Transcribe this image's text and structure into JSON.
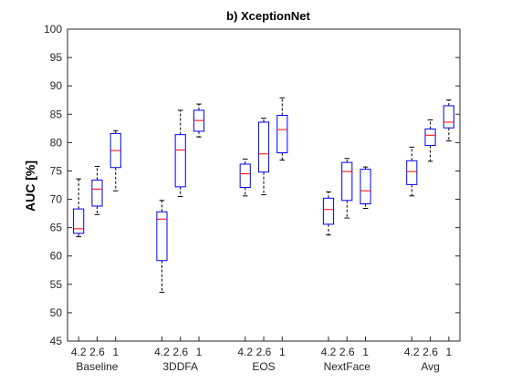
{
  "chart_data": {
    "type": "box",
    "title": "b) XceptionNet",
    "ylabel": "AUC [%]",
    "xlabel": "",
    "ylim": [
      45,
      100
    ],
    "yticks": [
      45,
      50,
      55,
      60,
      65,
      70,
      75,
      80,
      85,
      90,
      95,
      100
    ],
    "grid": false,
    "legend": "none",
    "colors": {
      "box": "#0000ff",
      "median": "#ff0000",
      "whisker": "#000000",
      "axis": "#262626"
    },
    "groups": [
      {
        "name": "Baseline",
        "boxes": [
          {
            "label": "4.2",
            "min": 63.4,
            "q1": 64.0,
            "median": 64.8,
            "q3": 68.3,
            "max": 73.6
          },
          {
            "label": "2.6",
            "min": 67.3,
            "q1": 68.8,
            "median": 71.8,
            "q3": 73.4,
            "max": 75.8
          },
          {
            "label": "1",
            "min": 71.5,
            "q1": 75.6,
            "median": 78.6,
            "q3": 81.6,
            "max": 82.1
          }
        ]
      },
      {
        "name": "3DDFA",
        "boxes": [
          {
            "label": "4.2",
            "min": 53.6,
            "q1": 59.2,
            "median": 66.5,
            "q3": 67.8,
            "max": 69.8
          },
          {
            "label": "2.6",
            "min": 70.5,
            "q1": 72.2,
            "median": 78.7,
            "q3": 81.4,
            "max": 85.7
          },
          {
            "label": "1",
            "min": 81.0,
            "q1": 82.0,
            "median": 83.9,
            "q3": 85.7,
            "max": 86.8
          }
        ]
      },
      {
        "name": "EOS",
        "boxes": [
          {
            "label": "4.2",
            "min": 70.6,
            "q1": 72.1,
            "median": 74.5,
            "q3": 76.2,
            "max": 77.1
          },
          {
            "label": "2.6",
            "min": 70.8,
            "q1": 74.8,
            "median": 78.0,
            "q3": 83.6,
            "max": 84.3
          },
          {
            "label": "1",
            "min": 76.9,
            "q1": 78.2,
            "median": 82.3,
            "q3": 84.8,
            "max": 87.9
          }
        ]
      },
      {
        "name": "NextFace",
        "boxes": [
          {
            "label": "4.2",
            "min": 63.7,
            "q1": 65.6,
            "median": 68.2,
            "q3": 70.2,
            "max": 71.3
          },
          {
            "label": "2.6",
            "min": 66.7,
            "q1": 69.8,
            "median": 74.9,
            "q3": 76.5,
            "max": 77.2
          },
          {
            "label": "1",
            "min": 68.4,
            "q1": 69.2,
            "median": 71.5,
            "q3": 75.3,
            "max": 75.7
          }
        ]
      },
      {
        "name": "Avg",
        "boxes": [
          {
            "label": "4.2",
            "min": 70.6,
            "q1": 72.6,
            "median": 74.9,
            "q3": 76.8,
            "max": 79.2
          },
          {
            "label": "2.6",
            "min": 76.7,
            "q1": 79.5,
            "median": 81.3,
            "q3": 82.4,
            "max": 84.0
          },
          {
            "label": "1",
            "min": 80.3,
            "q1": 82.6,
            "median": 83.6,
            "q3": 86.5,
            "max": 87.5
          }
        ]
      }
    ]
  }
}
